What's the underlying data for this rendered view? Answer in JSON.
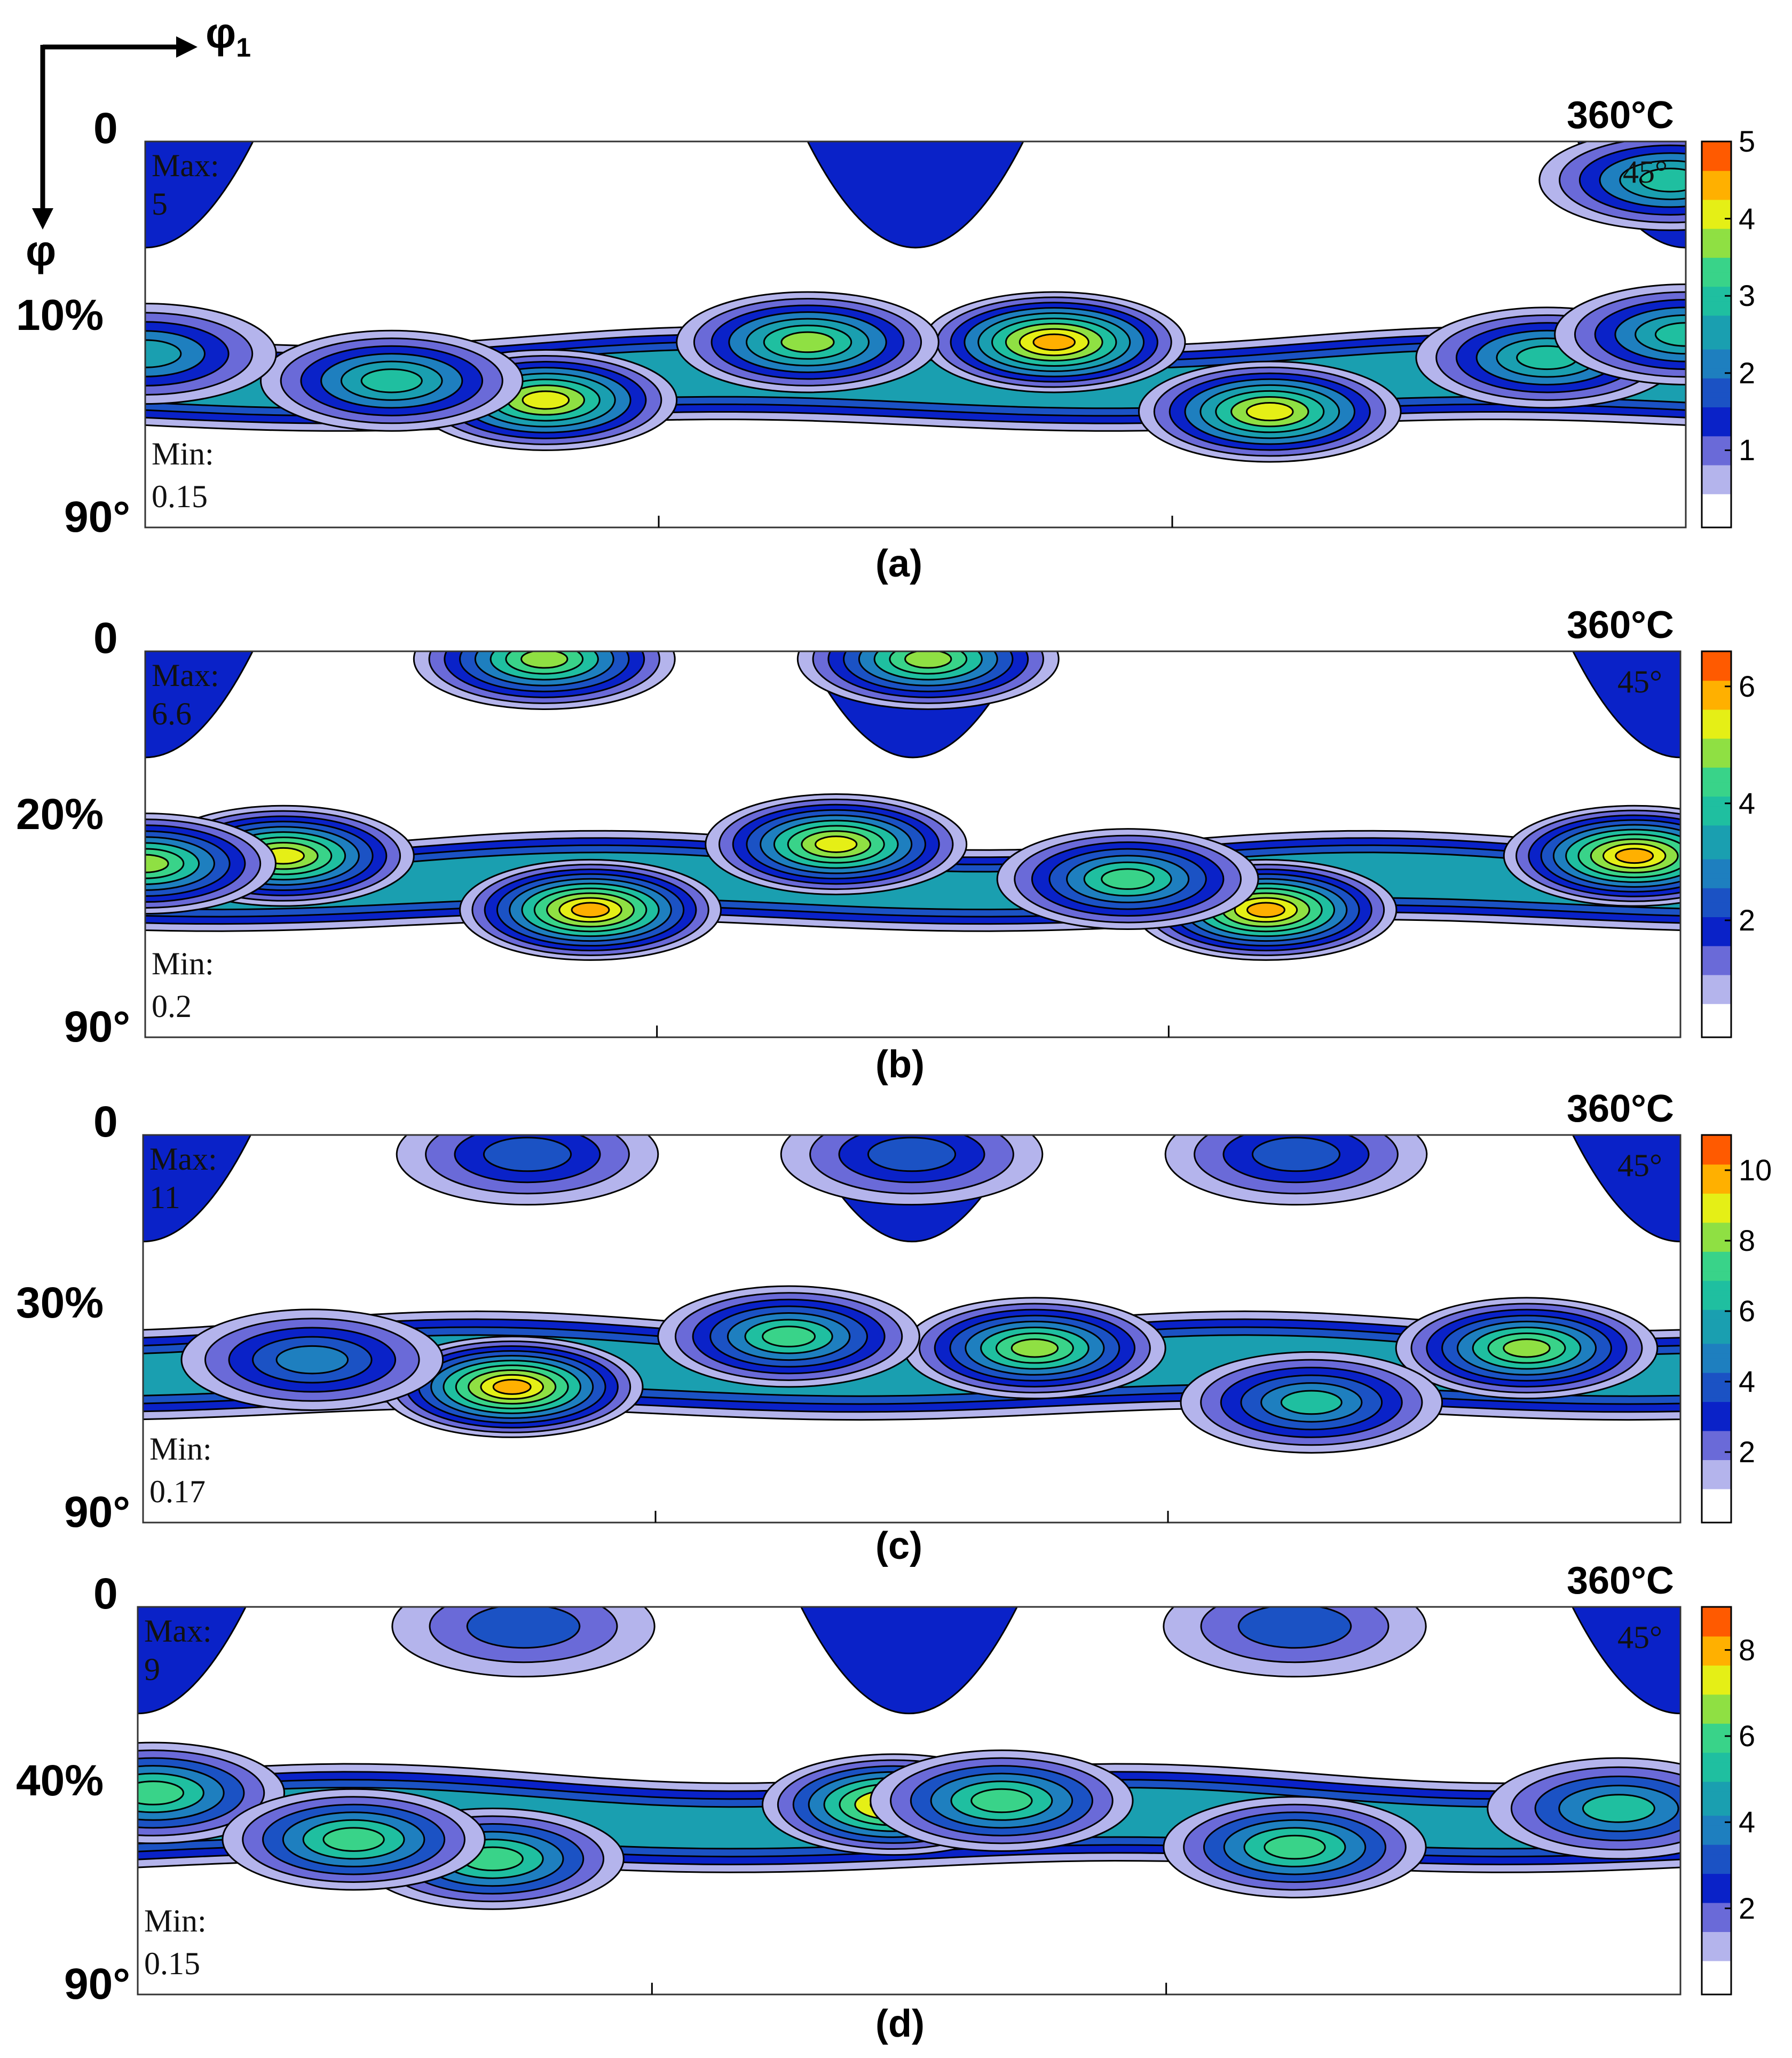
{
  "axes": {
    "x_symbol": "φ",
    "x_subscript": "1",
    "y_symbol": "φ",
    "corner_label": "45°"
  },
  "colors": {
    "scale": [
      "#ffffff",
      "#b4b4ec",
      "#6a6ad8",
      "#0a22c8",
      "#1b52c4",
      "#1e7fbf",
      "#1a9fb0",
      "#1fbfa0",
      "#39d389",
      "#8fe043",
      "#e5ef16",
      "#ffb000",
      "#ff5a00",
      "#e60000"
    ],
    "grid": "#000000"
  },
  "chart_data": [
    {
      "id": "a",
      "type": "heatmap",
      "caption": "(a)",
      "title": "360°C",
      "strain_label": "10%",
      "y_top": "0",
      "y_bottom": "90°",
      "max_label": "Max:",
      "max_value": "5",
      "min_label": "Min:",
      "min_value": "0.15",
      "colorbar_ticks": [
        "1",
        "2",
        "3",
        "4",
        "5"
      ],
      "colorbar_range": [
        0.15,
        5
      ],
      "levels": [
        0.5,
        1,
        1.5,
        2,
        2.5,
        3,
        3.5,
        4,
        4.5
      ],
      "band_center": 0.62,
      "band_width": 0.23,
      "peaks": [
        {
          "phi1": 0.26,
          "phi": 0.67,
          "value": 4.3
        },
        {
          "phi1": 0.59,
          "phi": 0.52,
          "value": 4.6
        },
        {
          "phi1": 0.73,
          "phi": 0.7,
          "value": 4.4
        },
        {
          "phi1": 0.43,
          "phi": 0.52,
          "value": 3.9
        },
        {
          "phi1": 0.16,
          "phi": 0.62,
          "value": 3.0
        },
        {
          "phi1": 0.91,
          "phi": 0.56,
          "value": 3.0
        },
        {
          "phi1": 1.0,
          "phi": 0.5,
          "value": 3.0
        },
        {
          "phi1": 0.0,
          "phi": 0.55,
          "value": 2.9
        },
        {
          "phi1": 0.99,
          "phi": 0.1,
          "value": 3.0
        }
      ]
    },
    {
      "id": "b",
      "type": "heatmap",
      "caption": "(b)",
      "title": "360°C",
      "strain_label": "20%",
      "y_top": "0",
      "y_bottom": "90°",
      "max_label": "Max:",
      "max_value": "6.6",
      "min_label": "Min:",
      "min_value": "0.2",
      "colorbar_ticks": [
        "2",
        "4",
        "6"
      ],
      "colorbar_range": [
        0.2,
        6.6
      ],
      "levels": [
        0.6,
        1.2,
        1.8,
        2.4,
        3.0,
        3.6,
        4.2,
        4.8,
        5.4,
        6.0
      ],
      "band_center": 0.6,
      "band_width": 0.22,
      "peaks": [
        {
          "phi1": 0.73,
          "phi": 0.67,
          "value": 6.5
        },
        {
          "phi1": 0.29,
          "phi": 0.67,
          "value": 6.3
        },
        {
          "phi1": 0.97,
          "phi": 0.53,
          "value": 6.2
        },
        {
          "phi1": 0.45,
          "phi": 0.5,
          "value": 5.6
        },
        {
          "phi1": 0.09,
          "phi": 0.53,
          "value": 5.4
        },
        {
          "phi1": 0.0,
          "phi": 0.55,
          "value": 4.8
        },
        {
          "phi1": 0.64,
          "phi": 0.59,
          "value": 4.2
        },
        {
          "phi1": 0.26,
          "phi": 0.02,
          "value": 5.0
        },
        {
          "phi1": 0.51,
          "phi": 0.02,
          "value": 4.8
        }
      ]
    },
    {
      "id": "c",
      "type": "heatmap",
      "caption": "(c)",
      "title": "360°C",
      "strain_label": "30%",
      "y_top": "0",
      "y_bottom": "90°",
      "max_label": "Max:",
      "max_value": "11",
      "min_label": "Min:",
      "min_value": "0.17",
      "colorbar_ticks": [
        "2",
        "4",
        "6",
        "8",
        "10"
      ],
      "colorbar_range": [
        0.17,
        11
      ],
      "levels": [
        1,
        2,
        3,
        4,
        5,
        6,
        7,
        8,
        9,
        10
      ],
      "band_center": 0.6,
      "band_width": 0.24,
      "peaks": [
        {
          "phi1": 0.24,
          "phi": 0.65,
          "value": 10.8
        },
        {
          "phi1": 0.58,
          "phi": 0.55,
          "value": 8.8
        },
        {
          "phi1": 0.9,
          "phi": 0.55,
          "value": 8.3
        },
        {
          "phi1": 0.42,
          "phi": 0.52,
          "value": 7.2
        },
        {
          "phi1": 0.76,
          "phi": 0.69,
          "value": 6.0
        },
        {
          "phi1": 0.11,
          "phi": 0.58,
          "value": 5.6
        },
        {
          "phi1": 0.25,
          "phi": 0.05,
          "value": 4.2
        },
        {
          "phi1": 0.5,
          "phi": 0.05,
          "value": 4.0
        },
        {
          "phi1": 0.75,
          "phi": 0.05,
          "value": 4.2
        }
      ]
    },
    {
      "id": "d",
      "type": "heatmap",
      "caption": "(d)",
      "title": "360°C",
      "strain_label": "40%",
      "y_top": "0",
      "y_bottom": "90°",
      "max_label": "Max:",
      "max_value": "9",
      "min_label": "Min:",
      "min_value": "0.15",
      "colorbar_ticks": [
        "2",
        "4",
        "6",
        "8"
      ],
      "colorbar_range": [
        0.15,
        9
      ],
      "levels": [
        1,
        2,
        3,
        4,
        5,
        6,
        7,
        8
      ],
      "band_center": 0.55,
      "band_width": 0.24,
      "peaks": [
        {
          "phi1": 0.49,
          "phi": 0.51,
          "value": 8.6
        },
        {
          "phi1": 0.01,
          "phi": 0.48,
          "value": 6.6
        },
        {
          "phi1": 0.23,
          "phi": 0.65,
          "value": 6.6
        },
        {
          "phi1": 0.56,
          "phi": 0.5,
          "value": 6.3
        },
        {
          "phi1": 0.75,
          "phi": 0.62,
          "value": 6.4
        },
        {
          "phi1": 0.14,
          "phi": 0.6,
          "value": 6.0
        },
        {
          "phi1": 0.96,
          "phi": 0.52,
          "value": 5.8
        },
        {
          "phi1": 0.25,
          "phi": 0.05,
          "value": 3.6
        },
        {
          "phi1": 0.75,
          "phi": 0.05,
          "value": 3.6
        }
      ]
    }
  ]
}
